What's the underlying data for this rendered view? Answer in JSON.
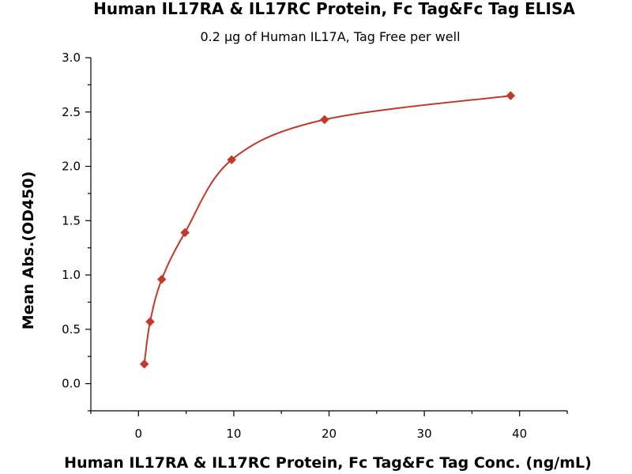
{
  "chart_data": {
    "type": "scatter",
    "title": "Human IL17RA & IL17RC Protein, Fc Tag&Fc Tag ELISA",
    "subtitle": "0.2 µg of Human IL17A, Tag Free per well",
    "xlabel": "Human IL17RA & IL17RC Protein, Fc Tag&Fc Tag Conc. (ng/mL)",
    "ylabel": "Mean Abs.(OD450)",
    "xlim": [
      -5,
      45
    ],
    "ylim": [
      -0.25,
      3.0
    ],
    "xticks": [
      0,
      10,
      20,
      30,
      40
    ],
    "yticks": [
      0.0,
      0.5,
      1.0,
      1.5,
      2.0,
      2.5,
      3.0
    ],
    "xtick_labels": [
      "0",
      "10",
      "20",
      "30",
      "40"
    ],
    "ytick_labels": [
      "0.0",
      "0.5",
      "1.0",
      "1.5",
      "2.0",
      "2.5",
      "3.0"
    ],
    "grid": false,
    "series": [
      {
        "x": [
          0.61,
          1.22,
          2.44,
          4.88,
          9.77,
          19.53,
          39.06
        ],
        "y": [
          0.18,
          0.57,
          0.96,
          1.39,
          2.06,
          2.43,
          2.65
        ],
        "marker": "diamond",
        "color": "#C0392B",
        "fit_curve": true
      }
    ]
  }
}
